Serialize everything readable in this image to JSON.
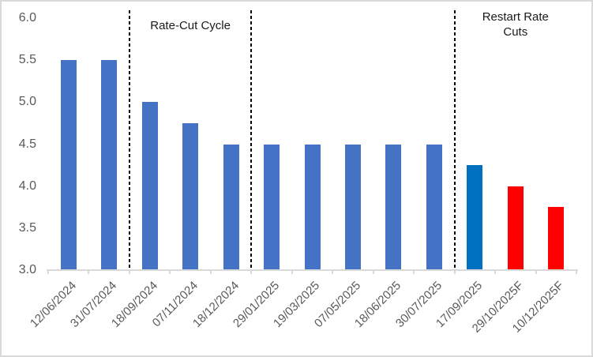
{
  "chart_data": {
    "type": "bar",
    "title": "",
    "xlabel": "",
    "ylabel": "",
    "categories": [
      "12/06/2024",
      "31/07/2024",
      "18/09/2024",
      "07/11/2024",
      "18/12/2024",
      "29/01/2025",
      "19/03/2025",
      "07/05/2025",
      "18/06/2025",
      "30/07/2025",
      "17/09/2025",
      "29/10/2025F",
      "10/12/2025F"
    ],
    "values": [
      5.5,
      5.5,
      5.0,
      4.75,
      4.5,
      4.5,
      4.5,
      4.5,
      4.5,
      4.5,
      4.25,
      4.0,
      3.75
    ],
    "bar_colors": [
      "#4472C4",
      "#4472C4",
      "#4472C4",
      "#4472C4",
      "#4472C4",
      "#4472C4",
      "#4472C4",
      "#4472C4",
      "#4472C4",
      "#4472C4",
      "#0070C0",
      "#FF0000",
      "#FF0000"
    ],
    "ylim": [
      3.0,
      6.0
    ],
    "yticks": [
      "6.0",
      "5.5",
      "5.0",
      "4.5",
      "4.0",
      "3.5",
      "3.0"
    ],
    "grid": "off",
    "legend": "none",
    "separators_after_index": [
      1,
      4,
      9
    ],
    "annotations": [
      {
        "text": "Rate-Cut Cycle",
        "between_boundaries": [
          2,
          5
        ]
      },
      {
        "text": "Restart Rate Cuts",
        "between_boundaries": [
          10,
          13
        ]
      }
    ],
    "colors": {
      "default_bar": "#4472C4",
      "highlight_bar": "#0070C0",
      "forecast_bar": "#FF0000",
      "axis_text": "#595959",
      "axis_line": "#D9D9D9",
      "separator_line": "#000000",
      "annotation_text": "#1A1A1A"
    }
  }
}
